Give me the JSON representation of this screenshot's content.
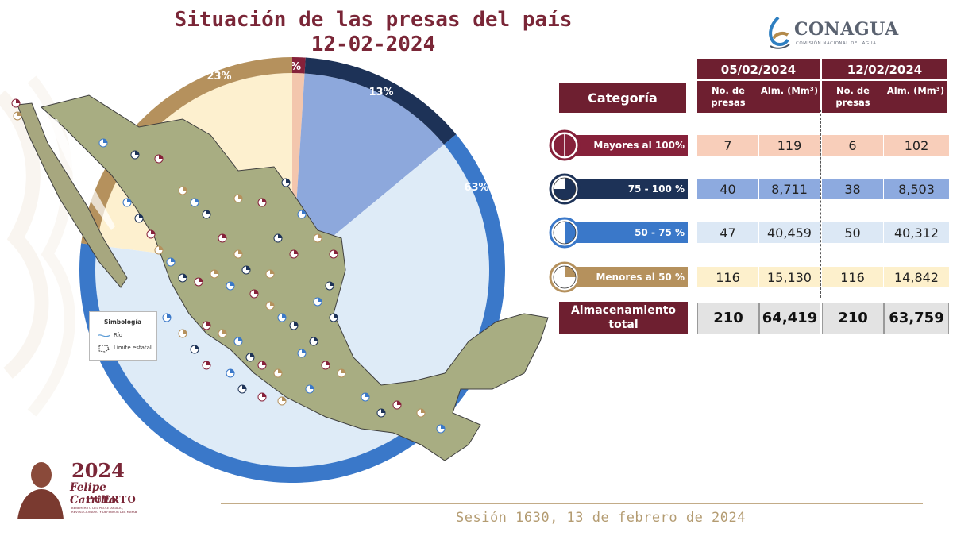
{
  "header": {
    "title_line1": "Situación de las presas del país",
    "title_line2": "12-02-2024"
  },
  "logo": {
    "name": "CONAGUA",
    "subtitle": "COMISIÓN NACIONAL DEL AGUA"
  },
  "chart_data": {
    "type": "pie",
    "slices": [
      {
        "label": "1%",
        "value": 1,
        "color": "#86213a",
        "fill": "#f3c6ad"
      },
      {
        "label": "13%",
        "value": 13,
        "color": "#1d3257",
        "fill": "#8da8dc"
      },
      {
        "label": "63%",
        "value": 63,
        "color": "#3a78c9",
        "fill": "#deebf7"
      },
      {
        "label": "23%",
        "value": 23,
        "color": "#b5915d",
        "fill": "#fdf0cf"
      }
    ]
  },
  "legend": {
    "title": "Simbología",
    "item1": "Río",
    "item2": "Límite estatal"
  },
  "table": {
    "category_header": "Categoría",
    "dates": [
      "05/02/2024",
      "12/02/2024"
    ],
    "col_no": "No. de presas",
    "col_alm": "Alm. (Mm³)",
    "rows": [
      {
        "label": "Mayores al 100%",
        "color": "#86213a",
        "fill": "#f8ceba",
        "icon": "full-circle-icon",
        "v1_no": "7",
        "v1_alm": "119",
        "v2_no": "6",
        "v2_alm": "102"
      },
      {
        "label": "75 - 100 %",
        "color": "#1d3257",
        "fill": "#8daadf",
        "icon": "three-quarter-circle-icon",
        "v1_no": "40",
        "v1_alm": "8,711",
        "v2_no": "38",
        "v2_alm": "8,503"
      },
      {
        "label": "50 - 75 %",
        "color": "#3a78c9",
        "fill": "#dce8f5",
        "icon": "half-circle-icon",
        "v1_no": "47",
        "v1_alm": "40,459",
        "v2_no": "50",
        "v2_alm": "40,312"
      },
      {
        "label": "Menores al 50 %",
        "color": "#b5915d",
        "fill": "#fdf0cc",
        "icon": "quarter-circle-icon",
        "v1_no": "116",
        "v1_alm": "15,130",
        "v2_no": "116",
        "v2_alm": "14,842"
      }
    ],
    "total_label": "Almacenamiento total",
    "total": {
      "v1_no": "210",
      "v1_alm": "64,419",
      "v2_no": "210",
      "v2_alm": "63,759"
    }
  },
  "footer": {
    "session": "Sesión 1630, 13 de febrero de 2024"
  },
  "emblem": {
    "year": "2024",
    "name1": "Felipe Carrillo",
    "name2": "PUERTO",
    "motto": "BENEMÉRITO DEL PROLETARIADO, REVOLUCIONARIO Y DEFENSOR DEL MAYAB"
  }
}
